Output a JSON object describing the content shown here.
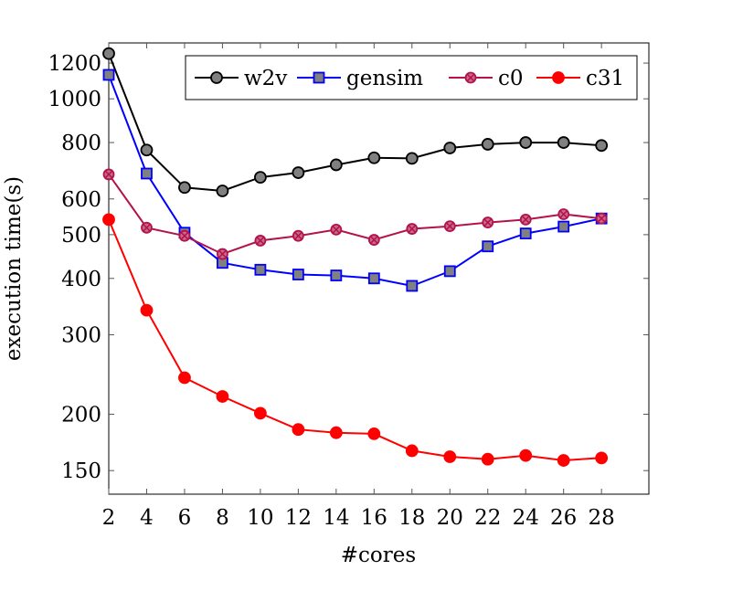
{
  "chart_data": {
    "type": "line",
    "xlabel": "#cores",
    "ylabel": "execution time(s)",
    "yscale": "log",
    "xlim": [
      2,
      30.5
    ],
    "ylim": [
      133,
      1330
    ],
    "xticks": [
      2,
      4,
      6,
      8,
      10,
      12,
      14,
      16,
      18,
      20,
      22,
      24,
      26,
      28
    ],
    "yticks": [
      150,
      200,
      300,
      400,
      500,
      600,
      800,
      1000,
      1200
    ],
    "x": [
      2,
      4,
      6,
      8,
      10,
      12,
      14,
      16,
      18,
      20,
      22,
      24,
      26,
      28
    ],
    "legend_position": "top-right",
    "grid": false,
    "series": [
      {
        "name": "w2v",
        "color": "#000000",
        "marker": "circle",
        "marker_fill": "#808080",
        "values": [
          1260,
          770,
          636,
          625,
          670,
          686,
          714,
          740,
          738,
          778,
          793,
          800,
          800,
          788
        ]
      },
      {
        "name": "gensim",
        "color": "#0000ff",
        "marker": "square",
        "marker_fill": "#808080",
        "values": [
          1130,
          683,
          505,
          433,
          418,
          408,
          406,
          400,
          385,
          415,
          471,
          503,
          521,
          543
        ]
      },
      {
        "name": "c0",
        "color": "#b3124a",
        "marker": "otimes",
        "marker_fill": "#c86a8c",
        "values": [
          680,
          518,
          497,
          453,
          485,
          497,
          513,
          487,
          515,
          522,
          532,
          540,
          555,
          543
        ]
      },
      {
        "name": "c31",
        "color": "#ff0000",
        "marker": "circle",
        "marker_fill": "#ff0000",
        "values": [
          540,
          340,
          241,
          219,
          201,
          185,
          182,
          181,
          166,
          161,
          159,
          162,
          158,
          160
        ]
      }
    ]
  }
}
